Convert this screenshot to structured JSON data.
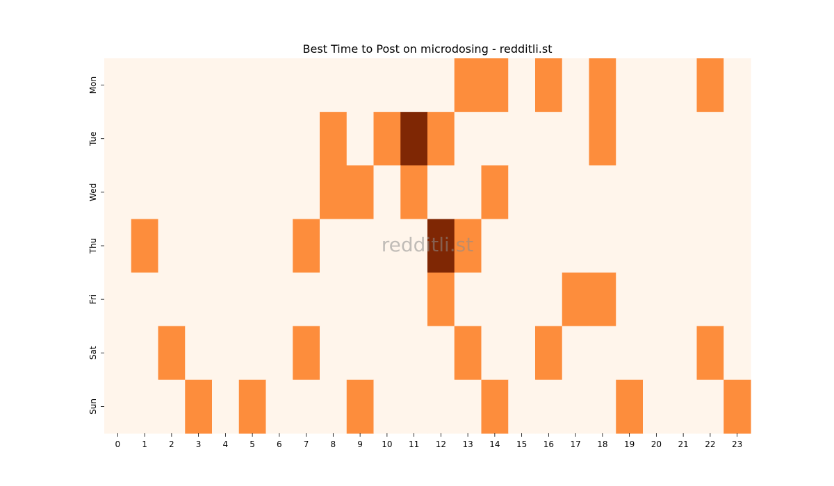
{
  "chart_data": {
    "type": "heatmap",
    "title": "Best Time to Post on microdosing - redditli.st",
    "watermark": "redditli.st",
    "xlabel": "",
    "ylabel": "",
    "x_categories": [
      "0",
      "1",
      "2",
      "3",
      "4",
      "5",
      "6",
      "7",
      "8",
      "9",
      "10",
      "11",
      "12",
      "13",
      "14",
      "15",
      "16",
      "17",
      "18",
      "19",
      "20",
      "21",
      "22",
      "23"
    ],
    "y_categories": [
      "Mon",
      "Tue",
      "Wed",
      "Thu",
      "Fri",
      "Sat",
      "Sun"
    ],
    "values": [
      [
        0,
        0,
        0,
        0,
        0,
        0,
        0,
        0,
        0,
        0,
        0,
        0,
        0,
        1,
        1,
        0,
        1,
        0,
        1,
        0,
        0,
        0,
        1,
        0
      ],
      [
        0,
        0,
        0,
        0,
        0,
        0,
        0,
        0,
        1,
        0,
        1,
        2,
        1,
        0,
        0,
        0,
        0,
        0,
        1,
        0,
        0,
        0,
        0,
        0
      ],
      [
        0,
        0,
        0,
        0,
        0,
        0,
        0,
        0,
        1,
        1,
        0,
        1,
        0,
        0,
        1,
        0,
        0,
        0,
        0,
        0,
        0,
        0,
        0,
        0
      ],
      [
        0,
        1,
        0,
        0,
        0,
        0,
        0,
        1,
        0,
        0,
        0,
        0,
        2,
        1,
        0,
        0,
        0,
        0,
        0,
        0,
        0,
        0,
        0,
        0
      ],
      [
        0,
        0,
        0,
        0,
        0,
        0,
        0,
        0,
        0,
        0,
        0,
        0,
        1,
        0,
        0,
        0,
        0,
        1,
        1,
        0,
        0,
        0,
        0,
        0
      ],
      [
        0,
        0,
        1,
        0,
        0,
        0,
        0,
        1,
        0,
        0,
        0,
        0,
        0,
        1,
        0,
        0,
        1,
        0,
        0,
        0,
        0,
        0,
        1,
        0
      ],
      [
        0,
        0,
        0,
        1,
        0,
        1,
        0,
        0,
        0,
        1,
        0,
        0,
        0,
        0,
        1,
        0,
        0,
        0,
        0,
        1,
        0,
        0,
        0,
        1
      ]
    ],
    "colormap": {
      "0": "#fff5eb",
      "1": "#fd8d3c",
      "2": "#7f2704"
    },
    "colorbar": false,
    "grid": false
  }
}
